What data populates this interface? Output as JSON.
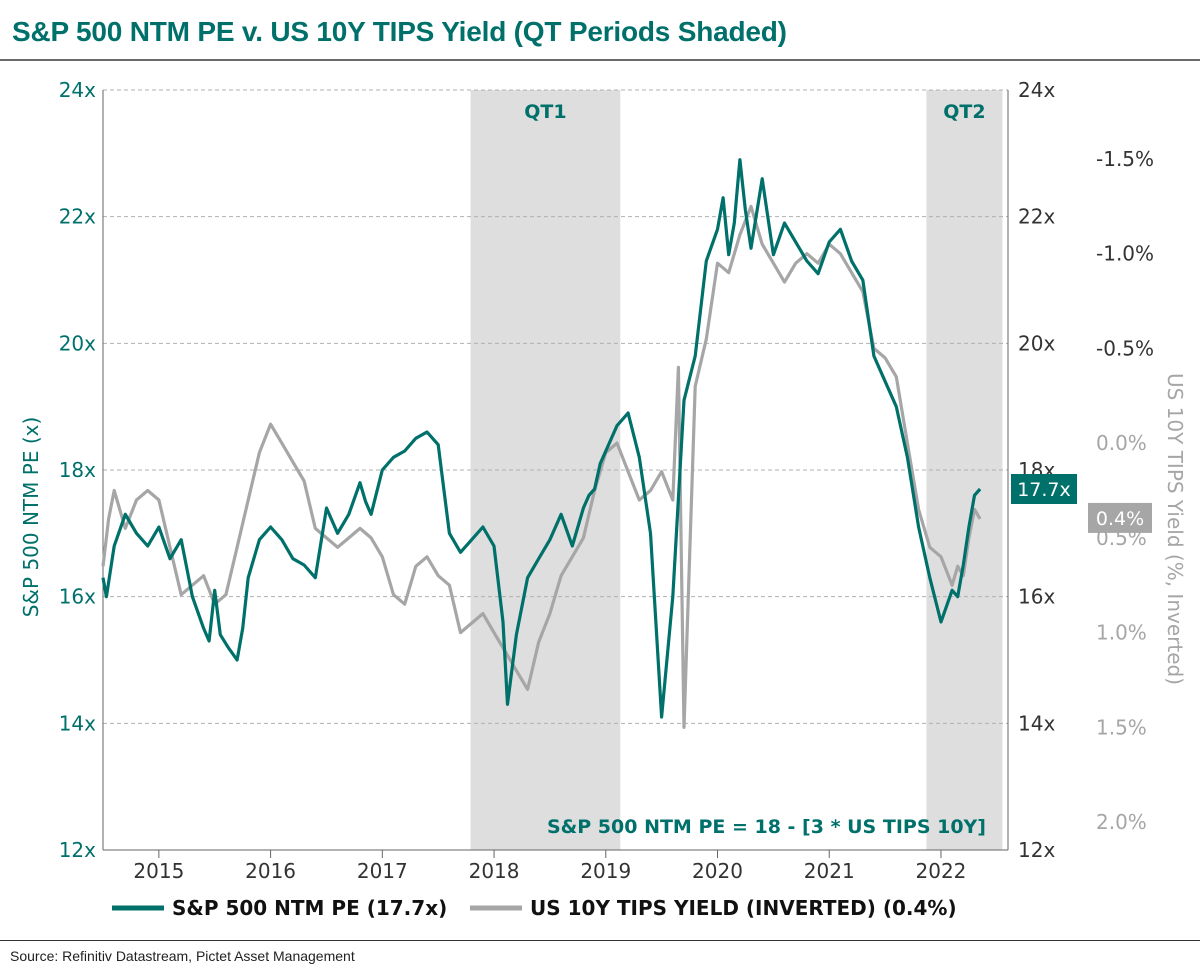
{
  "title": "S&P 500 NTM PE v. US 10Y TIPS Yield (QT Periods Shaded)",
  "source": "Source: Refinitiv Datastream, Pictet Asset Management",
  "colors": {
    "pe": "#00706b",
    "tips": "#a6a6a6",
    "shade": "#dedede",
    "grid": "#b0b0b0"
  },
  "chart_data": {
    "type": "line",
    "xlim": [
      2014.5,
      2022.6
    ],
    "x_ticks": [
      "2015",
      "2016",
      "2017",
      "2018",
      "2019",
      "2020",
      "2021",
      "2022"
    ],
    "left_axis": {
      "label": "S&P 500 NTM PE (x)",
      "ylim": [
        12,
        24
      ],
      "ticks": [
        "12x",
        "14x",
        "16x",
        "18x",
        "20x",
        "22x",
        "24x"
      ]
    },
    "right_pe_axis": {
      "ticks": [
        "12x",
        "14x",
        "16x",
        "18x",
        "20x",
        "22x",
        "24x"
      ]
    },
    "right_tips_axis": {
      "label": "US 10Y TIPS Yield (%, Inverted)",
      "inverted": true,
      "ticks": [
        "-1.5%",
        "-1.0%",
        "-0.5%",
        "0.0%",
        "0.5%",
        "1.0%",
        "1.5%",
        "2.0%"
      ]
    },
    "shaded_regions": [
      {
        "label": "QT1",
        "start": 2017.79,
        "end": 2019.13
      },
      {
        "label": "QT2",
        "start": 2021.87,
        "end": 2022.55
      }
    ],
    "annotation": "S&P 500 NTM PE = 18 - [3 * US TIPS 10Y]",
    "end_labels": {
      "pe": "17.7x",
      "tips": "0.4%"
    },
    "legend": [
      {
        "label": "S&P 500 NTM PE (17.7x)",
        "color": "#00706b"
      },
      {
        "label": "US 10Y TIPS YIELD (INVERTED) (0.4%)",
        "color": "#a6a6a6"
      }
    ],
    "series": [
      {
        "name": "S&P 500 NTM PE",
        "x": [
          2014.5,
          2014.53,
          2014.6,
          2014.7,
          2014.8,
          2014.9,
          2015.0,
          2015.1,
          2015.2,
          2015.3,
          2015.4,
          2015.45,
          2015.5,
          2015.55,
          2015.62,
          2015.7,
          2015.75,
          2015.8,
          2015.85,
          2015.9,
          2016.0,
          2016.1,
          2016.2,
          2016.3,
          2016.4,
          2016.5,
          2016.6,
          2016.7,
          2016.8,
          2016.85,
          2016.9,
          2017.0,
          2017.1,
          2017.2,
          2017.3,
          2017.4,
          2017.5,
          2017.6,
          2017.7,
          2017.8,
          2017.9,
          2018.0,
          2018.08,
          2018.12,
          2018.2,
          2018.3,
          2018.4,
          2018.5,
          2018.6,
          2018.7,
          2018.8,
          2018.85,
          2018.9,
          2018.95,
          2019.0,
          2019.1,
          2019.2,
          2019.3,
          2019.4,
          2019.5,
          2019.6,
          2019.7,
          2019.8,
          2019.9,
          2020.0,
          2020.05,
          2020.1,
          2020.15,
          2020.17,
          2020.2,
          2020.25,
          2020.3,
          2020.4,
          2020.5,
          2020.6,
          2020.7,
          2020.8,
          2020.9,
          2021.0,
          2021.1,
          2021.2,
          2021.3,
          2021.4,
          2021.5,
          2021.6,
          2021.7,
          2021.8,
          2021.9,
          2022.0,
          2022.1,
          2022.15,
          2022.2,
          2022.25,
          2022.3,
          2022.35
        ],
        "y": [
          16.3,
          16.0,
          16.8,
          17.3,
          17.0,
          16.8,
          17.1,
          16.6,
          16.9,
          16.0,
          15.5,
          15.3,
          16.1,
          15.4,
          15.2,
          15.0,
          15.5,
          16.3,
          16.6,
          16.9,
          17.1,
          16.9,
          16.6,
          16.5,
          16.3,
          17.4,
          17.0,
          17.3,
          17.8,
          17.5,
          17.3,
          18.0,
          18.2,
          18.3,
          18.5,
          18.6,
          18.4,
          17.0,
          16.7,
          16.9,
          17.1,
          16.8,
          15.6,
          14.3,
          15.4,
          16.3,
          16.6,
          16.9,
          17.3,
          16.8,
          17.4,
          17.6,
          17.7,
          18.1,
          18.3,
          18.7,
          18.9,
          18.2,
          17.0,
          14.1,
          16.0,
          19.1,
          19.8,
          21.3,
          21.8,
          22.3,
          21.4,
          21.9,
          22.3,
          22.9,
          22.1,
          21.5,
          22.6,
          21.4,
          21.9,
          21.6,
          21.3,
          21.1,
          21.6,
          21.8,
          21.3,
          21.0,
          19.8,
          19.4,
          19.0,
          18.2,
          17.1,
          16.3,
          15.6,
          16.1,
          16.0,
          16.5,
          17.1,
          17.6,
          17.7
        ]
      },
      {
        "name": "US 10Y TIPS Yield (inverted)",
        "x": [
          2014.5,
          2014.55,
          2014.6,
          2014.7,
          2014.8,
          2014.9,
          2015.0,
          2015.1,
          2015.2,
          2015.3,
          2015.4,
          2015.5,
          2015.6,
          2015.7,
          2015.8,
          2015.9,
          2016.0,
          2016.1,
          2016.2,
          2016.3,
          2016.4,
          2016.5,
          2016.6,
          2016.7,
          2016.8,
          2016.9,
          2017.0,
          2017.1,
          2017.2,
          2017.3,
          2017.4,
          2017.5,
          2017.6,
          2017.7,
          2017.8,
          2017.9,
          2018.0,
          2018.1,
          2018.2,
          2018.3,
          2018.4,
          2018.5,
          2018.6,
          2018.7,
          2018.8,
          2018.9,
          2019.0,
          2019.1,
          2019.2,
          2019.3,
          2019.4,
          2019.5,
          2019.6,
          2019.65,
          2019.7,
          2019.8,
          2019.9,
          2020.0,
          2020.1,
          2020.2,
          2020.3,
          2020.4,
          2020.5,
          2020.6,
          2020.7,
          2020.8,
          2020.9,
          2021.0,
          2021.1,
          2021.2,
          2021.3,
          2021.4,
          2021.5,
          2021.6,
          2021.7,
          2021.8,
          2021.9,
          2022.0,
          2022.1,
          2022.15,
          2022.2,
          2022.25,
          2022.3,
          2022.35
        ],
        "y": [
          0.65,
          0.4,
          0.25,
          0.45,
          0.3,
          0.25,
          0.3,
          0.55,
          0.8,
          0.75,
          0.7,
          0.85,
          0.8,
          0.55,
          0.3,
          0.05,
          -0.1,
          0.0,
          0.1,
          0.2,
          0.45,
          0.5,
          0.55,
          0.5,
          0.45,
          0.5,
          0.6,
          0.8,
          0.85,
          0.65,
          0.6,
          0.7,
          0.75,
          1.0,
          0.95,
          0.9,
          1.0,
          1.1,
          1.2,
          1.3,
          1.05,
          0.9,
          0.7,
          0.6,
          0.5,
          0.25,
          0.05,
          0.0,
          0.15,
          0.3,
          0.25,
          0.15,
          0.3,
          -0.4,
          1.5,
          -0.3,
          -0.55,
          -0.95,
          -0.9,
          -1.1,
          -1.25,
          -1.05,
          -0.95,
          -0.85,
          -0.95,
          -1.0,
          -0.95,
          -1.05,
          -1.0,
          -0.9,
          -0.8,
          -0.5,
          -0.45,
          -0.35,
          0.0,
          0.35,
          0.55,
          0.6,
          0.75,
          0.65,
          0.7,
          0.5,
          0.35,
          0.4
        ]
      }
    ]
  }
}
